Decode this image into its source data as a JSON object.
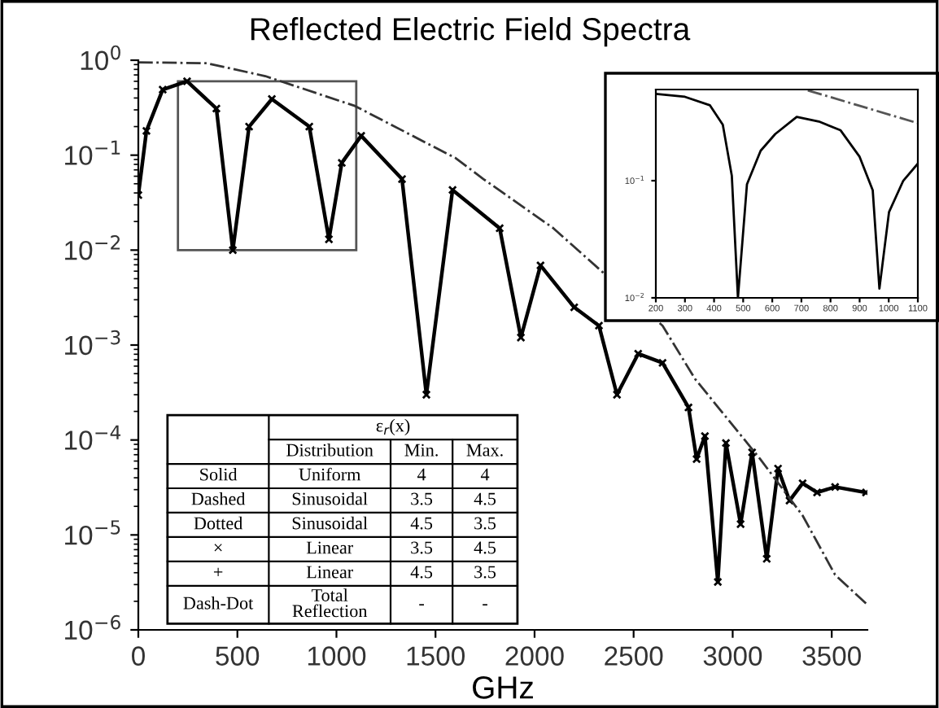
{
  "chart_data": [
    {
      "type": "line",
      "title": "Reflected Electric Field Spectra",
      "xlabel": "GHz",
      "xlim": [
        0,
        3680
      ],
      "xticks": [
        0,
        500,
        1000,
        1500,
        2000,
        2500,
        3000,
        3500
      ],
      "ylim": [
        1e-06,
        1
      ],
      "log": true,
      "yticks": [
        {
          "value": 1e-06,
          "label": "10$^{−6}$"
        },
        {
          "value": 1e-05,
          "label": "10$^{−5}$"
        },
        {
          "value": 0.0001,
          "label": "10$^{−4}$"
        },
        {
          "value": 0.001,
          "label": "10$^{−3}$"
        },
        {
          "value": 0.01,
          "label": "10$^{−2}$"
        },
        {
          "value": 0.1,
          "label": "10$^{−1}$"
        },
        {
          "value": 1,
          "label": "10$^{0}$"
        }
      ],
      "grid": false,
      "legend": false,
      "series": [
        {
          "color": "#000000",
          "marker": "cross",
          "line_style": "solid",
          "x": [
            0,
            41,
            123,
            246,
            394,
            477,
            559,
            674,
            863,
            962,
            1027,
            1125,
            1331,
            1454,
            1586,
            1824,
            1931,
            2030,
            2200,
            2325,
            2416,
            2523,
            2646,
            2777,
            2818,
            2860,
            2925,
            2966,
            3040,
            3098,
            3172,
            3229,
            3287,
            3353,
            3426,
            3517,
            3673
          ],
          "values": [
            0.038,
            0.18,
            0.49,
            0.6,
            0.31,
            0.01,
            0.2,
            0.39,
            0.2,
            0.013,
            0.083,
            0.16,
            0.056,
            0.0003,
            0.043,
            0.017,
            0.0012,
            0.0069,
            0.0025,
            0.0016,
            0.0003,
            0.00081,
            0.00065,
            0.00022,
            6.3e-05,
            0.00011,
            3.2e-06,
            9.3e-05,
            1.3e-05,
            7.4e-05,
            5.6e-06,
            5e-05,
            2.3e-05,
            3.5e-05,
            2.8e-05,
            3.2e-05,
            2.8e-05
          ]
        },
        {
          "color": "#333333",
          "marker": "none",
          "line_style": "dashdot",
          "x": [
            0,
            345,
            641,
            1093,
            1602,
            1742,
            2095,
            2646,
            2810,
            3139,
            3353,
            3517,
            3673
          ],
          "values": [
            0.95,
            0.93,
            0.68,
            0.33,
            0.093,
            0.056,
            0.017,
            0.0016,
            0.00044,
            6.3e-05,
            1.6e-05,
            3.8e-06,
            1.9e-06
          ]
        }
      ],
      "annotations": [
        "ε$_{r}$(x)",
        "Distribution",
        "Min.",
        "Max.",
        "Solid",
        "Uniform",
        "4",
        "4",
        "Dashed",
        "Sinusoidal",
        "3.5",
        "4.5",
        "Dotted",
        "Sinusoidal",
        "4.5",
        "3.5",
        "×",
        "Linear",
        "3.5",
        "4.5",
        "+",
        "Linear",
        "4.5",
        "3.5",
        "Dash-Dot",
        "Total\nReflection",
        "-",
        "-"
      ]
    },
    {
      "type": "line",
      "xlim": [
        200,
        1100
      ],
      "xticks": [
        200,
        300,
        400,
        500,
        600,
        700,
        800,
        900,
        1000,
        1100
      ],
      "ylim": [
        0.01,
        0.6
      ],
      "log": true,
      "yticks": [
        {
          "value": 0.01,
          "label": "10$^{−2}$"
        },
        {
          "value": 0.1,
          "label": "10$^{−1}$"
        }
      ],
      "grid": false,
      "legend": false,
      "series": [
        {
          "color": "#000000",
          "marker": "none",
          "line_style": "solid",
          "x": [
            200,
            300,
            386,
            430,
            461,
            482,
            513,
            560,
            610,
            684,
            760,
            834,
            900,
            945,
            968,
            1001,
            1050,
            1100
          ],
          "values": [
            0.55,
            0.52,
            0.44,
            0.3,
            0.11,
            0.01,
            0.093,
            0.18,
            0.25,
            0.35,
            0.32,
            0.27,
            0.16,
            0.083,
            0.012,
            0.054,
            0.1,
            0.14
          ]
        },
        {
          "color": "#555555",
          "marker": "none",
          "line_style": "dashdot",
          "x": [
            722,
            1100
          ],
          "values": [
            0.59,
            0.31
          ]
        }
      ]
    }
  ]
}
